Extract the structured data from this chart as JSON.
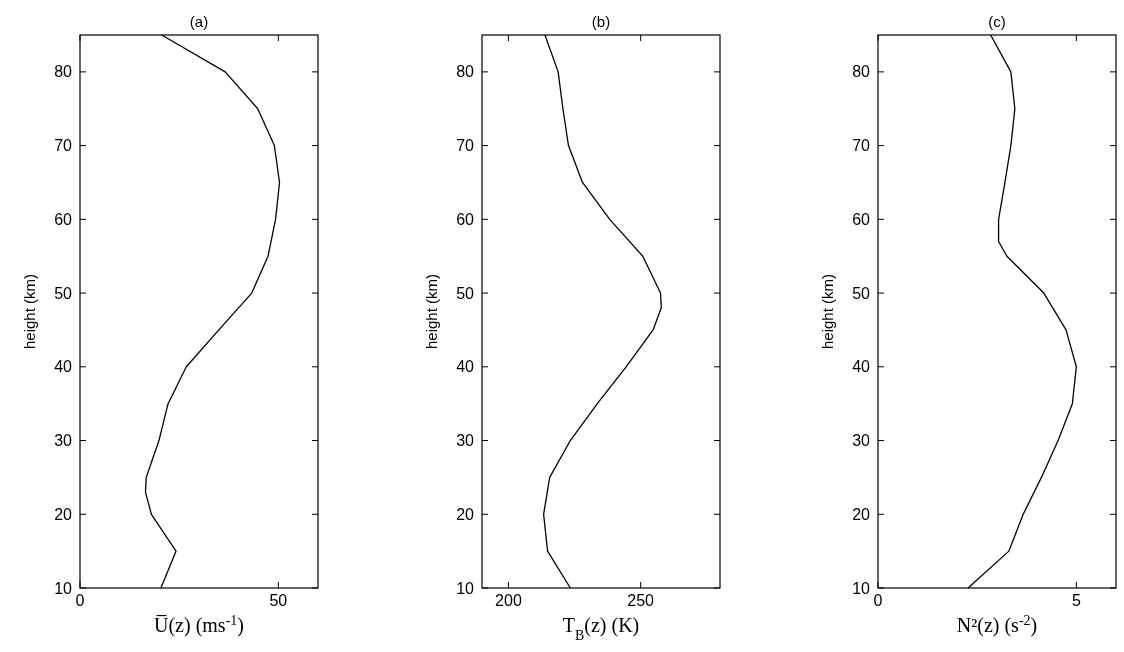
{
  "chart_data": [
    {
      "type": "line",
      "title": "(a)",
      "xlabel": "U̅(z) (ms$^{-1}$)",
      "ylabel": "height (km)",
      "xlim": [
        0,
        60
      ],
      "ylim": [
        10,
        85
      ],
      "xticks": [
        0,
        50
      ],
      "yticks": [
        10,
        20,
        30,
        40,
        50,
        60,
        70,
        80
      ],
      "grid": false,
      "series": [
        {
          "color": "#000000",
          "x": [
            20.4,
            24.2,
            18,
            16.5,
            16.7,
            19.9,
            22.2,
            26.8,
            35,
            43.3,
            47.4,
            49.3,
            50.3,
            49,
            44.8,
            36.6,
            20.6
          ],
          "values": [
            10,
            15,
            20,
            23,
            25,
            30,
            35,
            40,
            45,
            50,
            55,
            60,
            65,
            70,
            75,
            80,
            85
          ]
        }
      ]
    },
    {
      "type": "line",
      "title": "(b)",
      "xlabel": "T$_{B}$(z) (K)",
      "ylabel": "height (km)",
      "xlim": [
        190,
        280
      ],
      "ylim": [
        10,
        85
      ],
      "xticks": [
        200,
        250
      ],
      "yticks": [
        10,
        20,
        30,
        40,
        50,
        60,
        70,
        80
      ],
      "grid": false,
      "series": [
        {
          "color": "#000000",
          "x": [
            223.4,
            214.8,
            213.3,
            215.6,
            223.4,
            233.6,
            244.5,
            254.7,
            257.8,
            257.5,
            250.8,
            238.3,
            228,
            222.7,
            220.6,
            218.8,
            213.8
          ],
          "values": [
            10,
            15,
            20,
            25,
            30,
            35,
            40,
            45,
            48,
            50,
            55,
            60,
            65,
            70,
            75,
            80,
            85
          ]
        }
      ]
    },
    {
      "type": "line",
      "title": "(c)",
      "xlabel": "N²(z) (s$^{-2}$)",
      "ylabel": "height (km)",
      "xlim": [
        0,
        6
      ],
      "ylim": [
        10,
        85
      ],
      "xticks": [
        0,
        5
      ],
      "yticks": [
        10,
        20,
        30,
        40,
        50,
        60,
        70,
        80
      ],
      "grid": false,
      "series": [
        {
          "color": "#000000",
          "x": [
            2.27,
            3.3,
            3.66,
            4.12,
            4.54,
            4.9,
            5.0,
            4.74,
            4.18,
            3.25,
            3.04,
            3.04,
            3.2,
            3.35,
            3.45,
            3.35,
            2.84
          ],
          "values": [
            10,
            15,
            20,
            25,
            30,
            35,
            40,
            45,
            50,
            55,
            57,
            60,
            65,
            70,
            75,
            80,
            85
          ]
        }
      ]
    }
  ]
}
